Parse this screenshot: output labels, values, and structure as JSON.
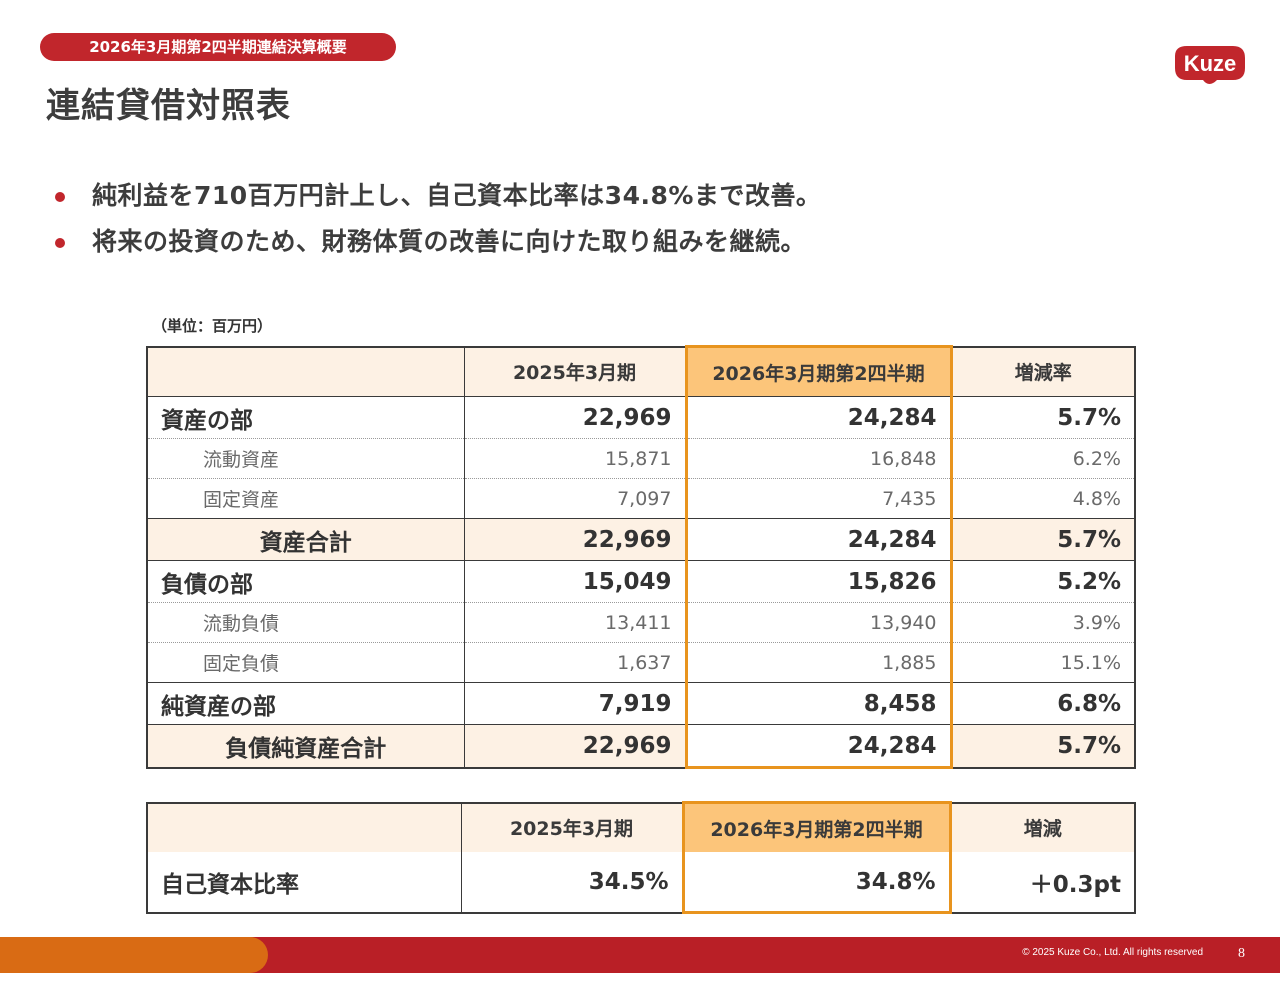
{
  "header": {
    "section_label": "2026年3月期第2四半期連結決算概要",
    "title": "連結貸借対照表",
    "logo_text": "Kuze"
  },
  "bullets": [
    "純利益を710百万円計上し、自己資本比率は34.8%まで改善。",
    "将来の投資のため、財務体質の改善に向けた取り組みを継続。"
  ],
  "unit_note": "（単位：百万円）",
  "balance_sheet": {
    "columns": [
      "",
      "2025年3月期",
      "2026年3月期第2四半期",
      "増減率"
    ],
    "rows": [
      {
        "label": "資産の部",
        "prev": "22,969",
        "curr": "24,284",
        "rate": "5.7%"
      },
      {
        "label": "流動資産",
        "prev": "15,871",
        "curr": "16,848",
        "rate": "6.2%"
      },
      {
        "label": "固定資産",
        "prev": "7,097",
        "curr": "7,435",
        "rate": "4.8%"
      },
      {
        "label": "資産合計",
        "prev": "22,969",
        "curr": "24,284",
        "rate": "5.7%"
      },
      {
        "label": "負債の部",
        "prev": "15,049",
        "curr": "15,826",
        "rate": "5.2%"
      },
      {
        "label": "流動負債",
        "prev": "13,411",
        "curr": "13,940",
        "rate": "3.9%"
      },
      {
        "label": "固定負債",
        "prev": "1,637",
        "curr": "1,885",
        "rate": "15.1%"
      },
      {
        "label": "純資産の部",
        "prev": "7,919",
        "curr": "8,458",
        "rate": "6.8%"
      },
      {
        "label": "負債純資産合計",
        "prev": "22,969",
        "curr": "24,284",
        "rate": "5.7%"
      }
    ]
  },
  "equity_ratio": {
    "columns": [
      "",
      "2025年3月期",
      "2026年3月期第2四半期",
      "増減"
    ],
    "row": {
      "label": "自己資本比率",
      "prev": "34.5%",
      "curr": "34.8%",
      "change": "＋0.3pt"
    }
  },
  "footer": {
    "copyright": "© 2025 Kuze Co., Ltd. All rights reserved",
    "page_number": "8"
  },
  "colors": {
    "brand_red": "#c1262c",
    "highlight_orange": "#e8941e",
    "header_fill": "#fdf1e4",
    "highlight_fill": "#fcc57a",
    "footer_orange": "#d96b14"
  }
}
